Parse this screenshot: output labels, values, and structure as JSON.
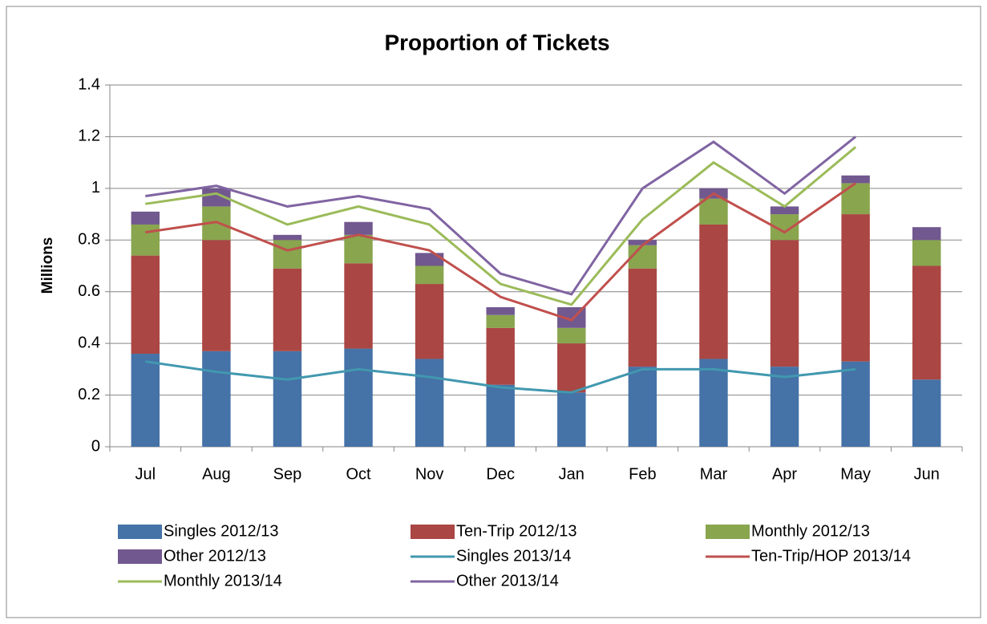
{
  "chart_data": {
    "type": "bar",
    "title": "Proportion of Tickets",
    "y_label": "Millions",
    "categories": [
      "Jul",
      "Aug",
      "Sep",
      "Oct",
      "Nov",
      "Dec",
      "Jan",
      "Feb",
      "Mar",
      "Apr",
      "May",
      "Jun"
    ],
    "stacked": true,
    "grid": true,
    "legend": "bottom",
    "ylim": [
      0,
      1.4
    ],
    "yticks": [
      0,
      0.2,
      0.4,
      0.6,
      0.8,
      1,
      1.2,
      1.4
    ],
    "series": [
      {
        "name": "Singles 2012/13",
        "type": "bar",
        "color": "#4572a7",
        "values": [
          0.36,
          0.37,
          0.37,
          0.38,
          0.34,
          0.24,
          0.21,
          0.31,
          0.34,
          0.31,
          0.33,
          0.26
        ]
      },
      {
        "name": "Ten-Trip 2012/13",
        "type": "bar",
        "color": "#aa4643",
        "values": [
          0.38,
          0.43,
          0.32,
          0.33,
          0.29,
          0.22,
          0.19,
          0.38,
          0.52,
          0.49,
          0.57,
          0.44
        ]
      },
      {
        "name": "Monthly 2012/13",
        "type": "bar",
        "color": "#89a54e",
        "values": [
          0.12,
          0.13,
          0.11,
          0.11,
          0.07,
          0.05,
          0.06,
          0.09,
          0.1,
          0.1,
          0.12,
          0.1
        ]
      },
      {
        "name": "Other 2012/13",
        "type": "bar",
        "color": "#71588f",
        "values": [
          0.05,
          0.07,
          0.02,
          0.05,
          0.05,
          0.03,
          0.08,
          0.02,
          0.04,
          0.03,
          0.03,
          0.05
        ]
      },
      {
        "name": "Singles 2013/14",
        "type": "line",
        "color": "#4198af",
        "values": [
          0.33,
          0.29,
          0.26,
          0.3,
          0.27,
          0.23,
          0.21,
          0.3,
          0.3,
          0.27,
          0.3,
          null
        ]
      },
      {
        "name": "Ten-Trip/HOP 2013/14",
        "type": "line",
        "color": "#c0504d",
        "values": [
          0.5,
          0.58,
          0.5,
          0.52,
          0.49,
          0.35,
          0.28,
          0.48,
          0.68,
          0.56,
          0.72,
          null
        ]
      },
      {
        "name": "Monthly 2013/14",
        "type": "line",
        "color": "#9bbb59",
        "values": [
          0.11,
          0.11,
          0.1,
          0.11,
          0.1,
          0.05,
          0.06,
          0.1,
          0.12,
          0.1,
          0.14,
          null
        ]
      },
      {
        "name": "Other 2013/14",
        "type": "line",
        "color": "#8064a2",
        "values": [
          0.03,
          0.03,
          0.07,
          0.04,
          0.06,
          0.04,
          0.04,
          0.12,
          0.08,
          0.05,
          0.04,
          null
        ]
      }
    ]
  }
}
